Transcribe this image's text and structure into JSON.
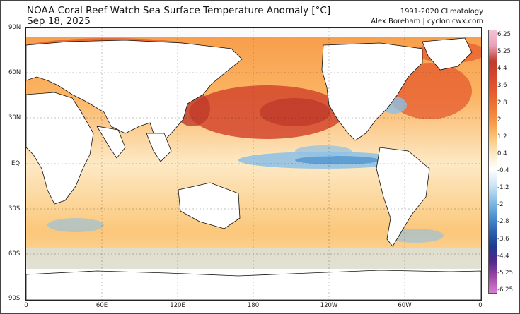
{
  "header": {
    "title": "NOAA Coral Reef Watch Sea Surface Temperature Anomaly [°C]",
    "date": "Sep 18, 2025",
    "climatology": "1991-2020 Climatology",
    "author": "Alex Boreham | cyclonicwx.com"
  },
  "map": {
    "lat_labels": [
      "90N",
      "60N",
      "30N",
      "EQ",
      "30S",
      "60S",
      "90S"
    ],
    "lon_labels": [
      "0",
      "60E",
      "120E",
      "180",
      "120W",
      "60W",
      "0"
    ],
    "projection": "equirectangular, 0° to 360°",
    "highlights": [
      "warm anomalies across North Pacific",
      "cool anomalies in equatorial central/eastern Pacific",
      "warm anomalies in North Atlantic"
    ]
  },
  "colorbar": {
    "ticks": [
      "6.25",
      "5.25",
      "4.4",
      "3.6",
      "2.8",
      "2",
      "1.2",
      "0.4",
      "-0.4",
      "-1.2",
      "-2",
      "-2.8",
      "-3.6",
      "-4.4",
      "-5.25",
      "-6.25"
    ],
    "colors": [
      "#f5c3d6",
      "#e8a1b7",
      "#bf3b2b",
      "#d4472d",
      "#e55a2e",
      "#ef7833",
      "#f79b48",
      "#fbc77a",
      "#fde9c5",
      "#ffffff",
      "#cfe6f5",
      "#8dc0e6",
      "#4f95d1",
      "#2d62b3",
      "#1e3c8f",
      "#55288a",
      "#a04aa8",
      "#d97bd0"
    ]
  }
}
